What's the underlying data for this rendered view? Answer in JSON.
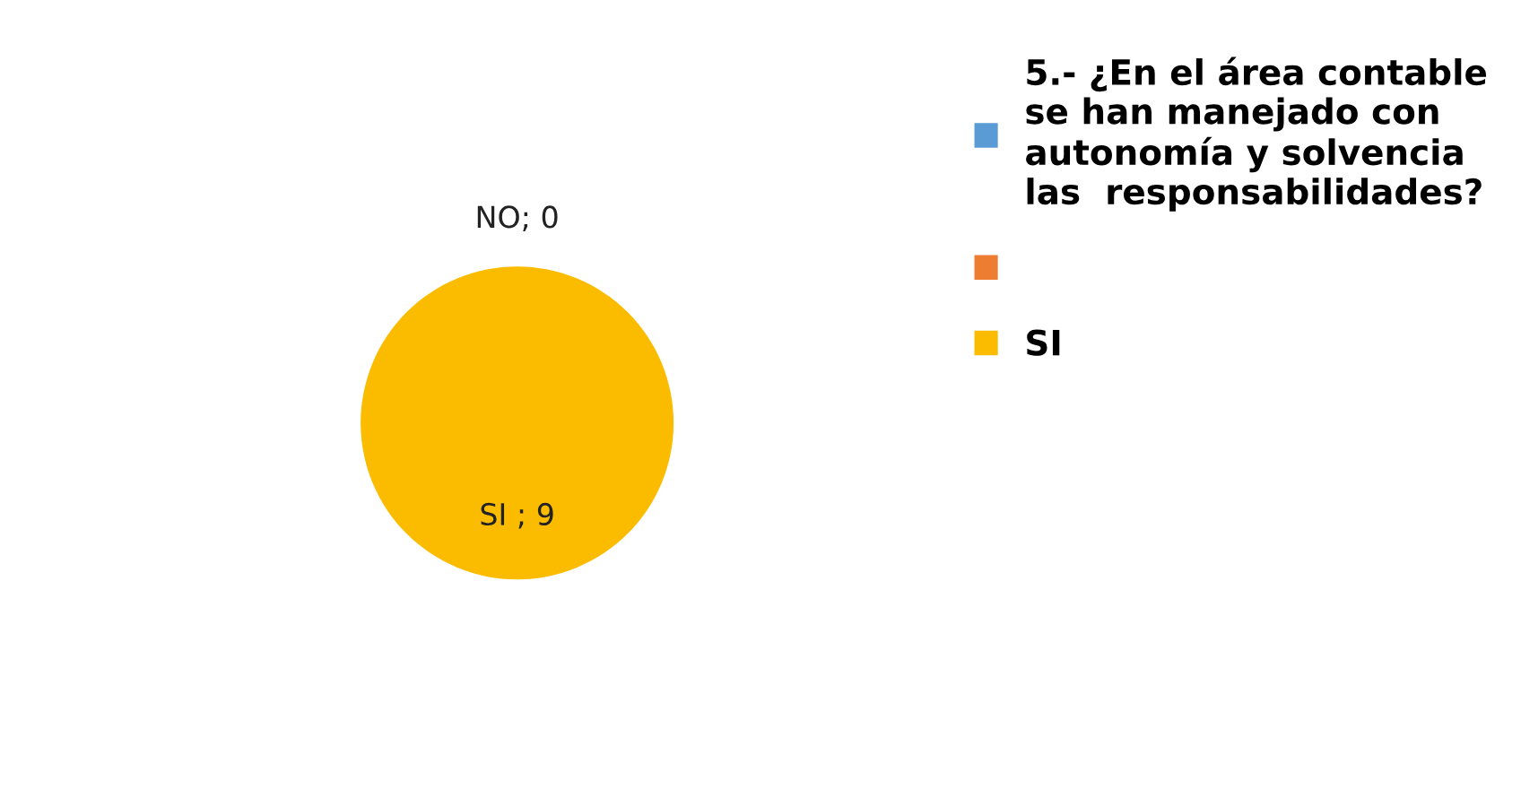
{
  "chart_data": {
    "type": "pie",
    "categories": [
      "5.- ¿En el área contable\nse han manejado con\nautonomía y solvencia\nlas  responsabilidades?",
      null,
      "SI"
    ],
    "values": [
      0,
      0,
      9
    ],
    "colors": [
      "#5b9bd5",
      "#ed7d31",
      "#fbbc00"
    ],
    "value_labels": [
      null,
      "NO; 0",
      "SI ; 9"
    ],
    "legend": "right"
  }
}
